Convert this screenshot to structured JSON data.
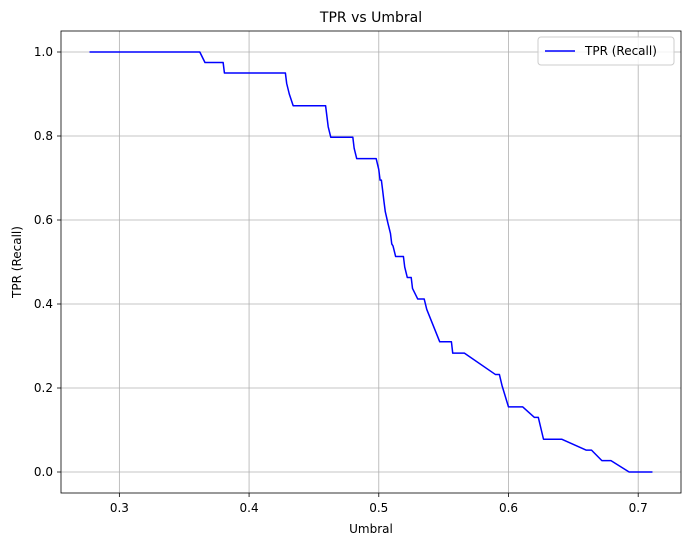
{
  "chart_data": {
    "type": "line",
    "title": "TPR vs Umbral",
    "xlabel": "Umbral",
    "ylabel": "TPR (Recall)",
    "xlim": [
      0.255,
      0.733
    ],
    "ylim": [
      -0.05,
      1.05
    ],
    "x_ticks": [
      0.3,
      0.4,
      0.5,
      0.6,
      0.7
    ],
    "x_tick_labels": [
      "0.3",
      "0.4",
      "0.5",
      "0.6",
      "0.7"
    ],
    "y_ticks": [
      0.0,
      0.2,
      0.4,
      0.6,
      0.8,
      1.0
    ],
    "y_tick_labels": [
      "0.0",
      "0.2",
      "0.4",
      "0.6",
      "0.8",
      "1.0"
    ],
    "grid": true,
    "legend_position": "upper right",
    "series": [
      {
        "name": "TPR (Recall)",
        "color": "#0000ff",
        "points": [
          [
            0.277,
            1.0
          ],
          [
            0.362,
            1.0
          ],
          [
            0.366,
            0.975
          ],
          [
            0.38,
            0.975
          ],
          [
            0.381,
            0.95
          ],
          [
            0.428,
            0.95
          ],
          [
            0.429,
            0.925
          ],
          [
            0.431,
            0.9
          ],
          [
            0.434,
            0.872
          ],
          [
            0.459,
            0.872
          ],
          [
            0.46,
            0.847
          ],
          [
            0.461,
            0.822
          ],
          [
            0.463,
            0.797
          ],
          [
            0.48,
            0.797
          ],
          [
            0.481,
            0.771
          ],
          [
            0.483,
            0.746
          ],
          [
            0.498,
            0.746
          ],
          [
            0.5,
            0.72
          ],
          [
            0.501,
            0.695
          ],
          [
            0.502,
            0.695
          ],
          [
            0.503,
            0.67
          ],
          [
            0.504,
            0.644
          ],
          [
            0.505,
            0.62
          ],
          [
            0.507,
            0.593
          ],
          [
            0.509,
            0.568
          ],
          [
            0.51,
            0.543
          ],
          [
            0.511,
            0.538
          ],
          [
            0.513,
            0.513
          ],
          [
            0.519,
            0.513
          ],
          [
            0.52,
            0.488
          ],
          [
            0.522,
            0.463
          ],
          [
            0.525,
            0.463
          ],
          [
            0.526,
            0.437
          ],
          [
            0.53,
            0.412
          ],
          [
            0.535,
            0.412
          ],
          [
            0.537,
            0.387
          ],
          [
            0.547,
            0.31
          ],
          [
            0.556,
            0.31
          ],
          [
            0.557,
            0.283
          ],
          [
            0.566,
            0.283
          ],
          [
            0.59,
            0.232
          ],
          [
            0.593,
            0.232
          ],
          [
            0.595,
            0.206
          ],
          [
            0.6,
            0.155
          ],
          [
            0.611,
            0.155
          ],
          [
            0.62,
            0.13
          ],
          [
            0.623,
            0.13
          ],
          [
            0.627,
            0.078
          ],
          [
            0.641,
            0.078
          ],
          [
            0.66,
            0.052
          ],
          [
            0.664,
            0.052
          ],
          [
            0.672,
            0.027
          ],
          [
            0.679,
            0.027
          ],
          [
            0.693,
            0.0
          ],
          [
            0.711,
            0.0
          ]
        ]
      }
    ]
  }
}
